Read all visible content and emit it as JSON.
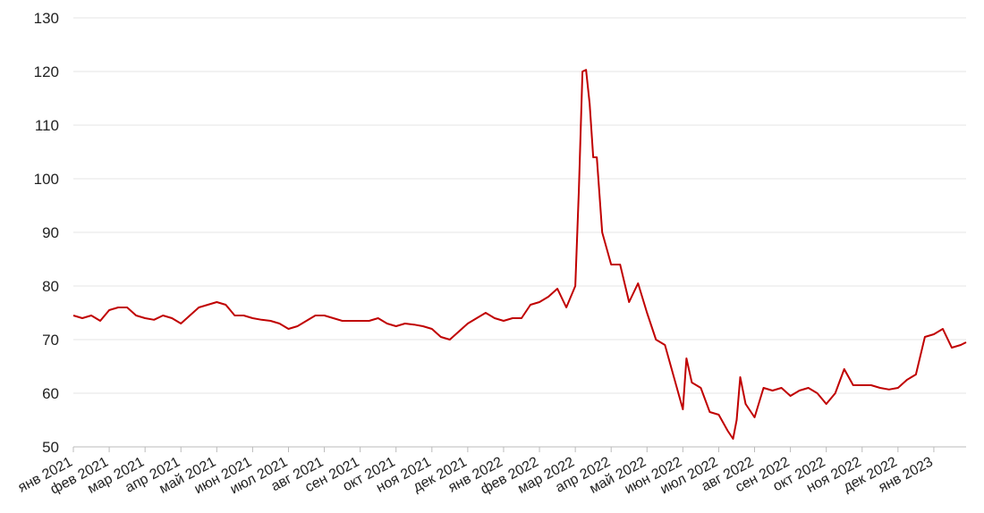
{
  "chart_data": {
    "type": "line",
    "x": [
      0,
      0.25,
      0.5,
      0.75,
      1,
      1.25,
      1.5,
      1.75,
      2,
      2.25,
      2.5,
      2.75,
      3,
      3.25,
      3.5,
      3.75,
      4,
      4.25,
      4.5,
      4.75,
      5,
      5.25,
      5.5,
      5.75,
      6,
      6.25,
      6.5,
      6.75,
      7,
      7.25,
      7.5,
      7.75,
      8,
      8.25,
      8.5,
      8.75,
      9,
      9.25,
      9.5,
      9.75,
      10,
      10.25,
      10.5,
      10.75,
      11,
      11.25,
      11.5,
      11.75,
      12,
      12.25,
      12.5,
      12.75,
      13,
      13.25,
      13.5,
      13.75,
      14,
      14.1,
      14.2,
      14.3,
      14.4,
      14.5,
      14.6,
      14.75,
      15,
      15.25,
      15.5,
      15.75,
      16,
      16.25,
      16.5,
      16.75,
      17,
      17.1,
      17.25,
      17.5,
      17.75,
      18,
      18.25,
      18.4,
      18.5,
      18.6,
      18.75,
      19,
      19.25,
      19.5,
      19.75,
      20,
      20.25,
      20.5,
      20.75,
      21,
      21.25,
      21.5,
      21.75,
      22,
      22.25,
      22.5,
      22.75,
      23,
      23.25,
      23.5,
      23.75,
      24,
      24.25,
      24.5,
      24.75,
      24.9
    ],
    "series": [
      {
        "color": "#c00000",
        "values": [
          74.5,
          74,
          74.5,
          73.5,
          75.5,
          76,
          76,
          74.5,
          74,
          73.7,
          74.5,
          74,
          73,
          74.5,
          76,
          76.5,
          77,
          76.5,
          74.5,
          74.5,
          74,
          73.7,
          73.5,
          73,
          72,
          72.5,
          73.5,
          74.5,
          74.5,
          74,
          73.5,
          73.5,
          73.5,
          73.5,
          74,
          73,
          72.5,
          73,
          72.8,
          72.5,
          72,
          70.5,
          70,
          71.5,
          73,
          74,
          75,
          74,
          73.5,
          74,
          74,
          76.5,
          77,
          78,
          79.5,
          76,
          80,
          98,
          120,
          120.3,
          114,
          104,
          104,
          90,
          84,
          84,
          77,
          80.5,
          75,
          70,
          69,
          63,
          57,
          66.5,
          62,
          61,
          56.5,
          56,
          53,
          51.5,
          55,
          63,
          58,
          55.5,
          61,
          60.5,
          61,
          59.5,
          60.5,
          61,
          60,
          58,
          60,
          64.5,
          61.5,
          61.5,
          61.5,
          61,
          60.7,
          61,
          62.5,
          63.5,
          70.5,
          71,
          72,
          68.5,
          69,
          69.5
        ]
      }
    ],
    "xlim": [
      0,
      24.9
    ],
    "xticks": [
      {
        "value": 0,
        "label": "янв 2021"
      },
      {
        "value": 1,
        "label": "фев 2021"
      },
      {
        "value": 2,
        "label": "мар 2021"
      },
      {
        "value": 3,
        "label": "апр 2021"
      },
      {
        "value": 4,
        "label": "май 2021"
      },
      {
        "value": 5,
        "label": "июн 2021"
      },
      {
        "value": 6,
        "label": "июл 2021"
      },
      {
        "value": 7,
        "label": "авг 2021"
      },
      {
        "value": 8,
        "label": "сен 2021"
      },
      {
        "value": 9,
        "label": "окт 2021"
      },
      {
        "value": 10,
        "label": "ноя 2021"
      },
      {
        "value": 11,
        "label": "дек 2021"
      },
      {
        "value": 12,
        "label": "янв 2022"
      },
      {
        "value": 13,
        "label": "фев 2022"
      },
      {
        "value": 14,
        "label": "мар 2022"
      },
      {
        "value": 15,
        "label": "апр 2022"
      },
      {
        "value": 16,
        "label": "май 2022"
      },
      {
        "value": 17,
        "label": "июн 2022"
      },
      {
        "value": 18,
        "label": "июл 2022"
      },
      {
        "value": 19,
        "label": "авг 2022"
      },
      {
        "value": 20,
        "label": "сен 2022"
      },
      {
        "value": 21,
        "label": "окт 2022"
      },
      {
        "value": 22,
        "label": "ноя 2022"
      },
      {
        "value": 23,
        "label": "дек 2022"
      },
      {
        "value": 24,
        "label": "янв 2023"
      }
    ],
    "ylim": [
      50,
      130
    ],
    "yticks": [
      50,
      60,
      70,
      80,
      90,
      100,
      110,
      120,
      130
    ],
    "grid": true
  }
}
